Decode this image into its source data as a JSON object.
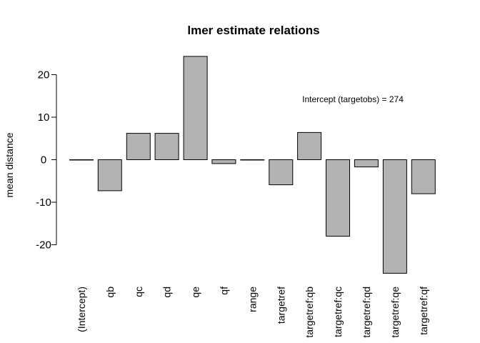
{
  "chart_data": {
    "type": "bar",
    "title": "lmer estimate relations",
    "xlabel": "",
    "ylabel": "mean distance",
    "ylim": [
      -28.5,
      28.5
    ],
    "yticks": [
      -20,
      -10,
      0,
      10,
      20
    ],
    "ytick_labels": [
      "-20",
      "-10",
      "0",
      "10",
      "20"
    ],
    "categories": [
      "(Intercept)",
      "qb",
      "qc",
      "qd",
      "qe",
      "qf",
      "range",
      "targetref",
      "targetref:qb",
      "targetref:qc",
      "targetref:qd",
      "targetref:qe",
      "targetref:qf"
    ],
    "values": [
      0,
      -7.3,
      6.2,
      6.2,
      24.3,
      -0.9,
      0,
      -5.9,
      6.4,
      -18.0,
      -1.7,
      -26.7,
      -8.0
    ],
    "annotation": "Intercept (targetobs) = 274",
    "bar_color": "#b3b3b3",
    "grid": false,
    "legend": "none"
  }
}
